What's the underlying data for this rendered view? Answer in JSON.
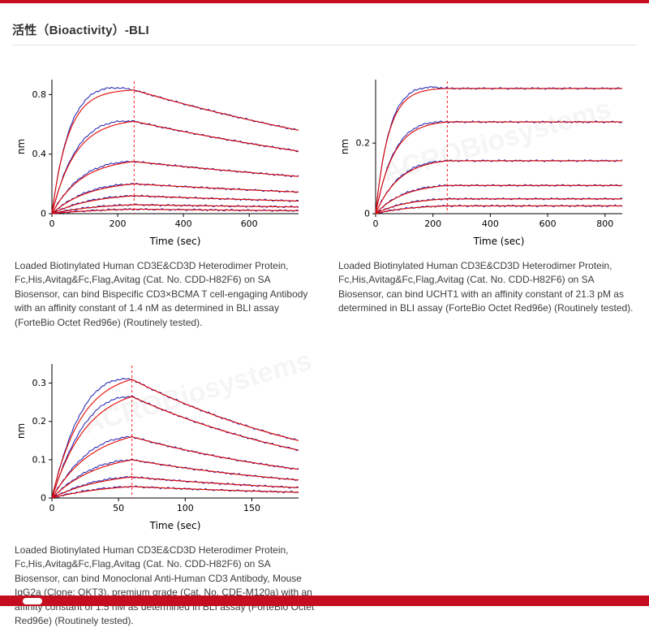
{
  "page": {
    "title": "活性（Bioactivity）-BLI",
    "watermark": "ACROBiosystems",
    "accent_color": "#c40d1e"
  },
  "chart_data": [
    {
      "type": "line",
      "title": "",
      "xlabel": "Time (sec)",
      "ylabel": "nm",
      "xlim": [
        0,
        750
      ],
      "ylim": [
        0,
        0.9
      ],
      "xticks": [
        0,
        200,
        400,
        600
      ],
      "yticks": [
        0,
        0.4,
        0.8
      ],
      "grid": false,
      "legend_position": "none",
      "association_end_sec": 250,
      "data_overshoot": 0.05,
      "colors": {
        "data": "#1d1db0",
        "fit": "#e10600",
        "dashed": "#ff1a1a"
      },
      "series": [
        {
          "name": "conc-1",
          "peak_nm": 0.83,
          "end_nm": 0.56,
          "kobs": 0.02
        },
        {
          "name": "conc-2",
          "peak_nm": 0.62,
          "end_nm": 0.42,
          "kobs": 0.014
        },
        {
          "name": "conc-3",
          "peak_nm": 0.35,
          "end_nm": 0.25,
          "kobs": 0.011
        },
        {
          "name": "conc-4",
          "peak_nm": 0.2,
          "end_nm": 0.145,
          "kobs": 0.009
        },
        {
          "name": "conc-5",
          "peak_nm": 0.12,
          "end_nm": 0.085,
          "kobs": 0.008
        },
        {
          "name": "conc-6",
          "peak_nm": 0.06,
          "end_nm": 0.045,
          "kobs": 0.007
        },
        {
          "name": "conc-7",
          "peak_nm": 0.03,
          "end_nm": 0.02,
          "kobs": 0.006
        }
      ],
      "caption": "Loaded Biotinylated Human CD3E&CD3D Heterodimer Protein, Fc,His,Avitag&Fc,Flag,Avitag (Cat. No. CDD-H82F6) on SA Biosensor, can bind Bispecific CD3×BCMA T cell-engaging Antibody with an affinity constant of 1.4 nM as determined in BLI assay (ForteBio Octet Red96e) (Routinely tested)."
    },
    {
      "type": "line",
      "title": "",
      "xlabel": "Time (sec)",
      "ylabel": "nm",
      "xlim": [
        0,
        860
      ],
      "ylim": [
        0,
        0.38
      ],
      "xticks": [
        0,
        200,
        400,
        600,
        800
      ],
      "yticks": [
        0,
        0.2
      ],
      "grid": false,
      "legend_position": "none",
      "association_end_sec": 250,
      "data_overshoot": 0.03,
      "colors": {
        "data": "#1d1db0",
        "fit": "#e10600",
        "dashed": "#ff1a1a"
      },
      "series": [
        {
          "name": "conc-1",
          "peak_nm": 0.355,
          "end_nm": 0.355,
          "kobs": 0.022
        },
        {
          "name": "conc-2",
          "peak_nm": 0.26,
          "end_nm": 0.26,
          "kobs": 0.016
        },
        {
          "name": "conc-3",
          "peak_nm": 0.15,
          "end_nm": 0.15,
          "kobs": 0.012
        },
        {
          "name": "conc-4",
          "peak_nm": 0.08,
          "end_nm": 0.08,
          "kobs": 0.01
        },
        {
          "name": "conc-5",
          "peak_nm": 0.042,
          "end_nm": 0.042,
          "kobs": 0.009
        },
        {
          "name": "conc-6",
          "peak_nm": 0.022,
          "end_nm": 0.022,
          "kobs": 0.008
        }
      ],
      "caption": "Loaded Biotinylated Human CD3E&CD3D Heterodimer Protein, Fc,His,Avitag&Fc,Flag,Avitag (Cat. No. CDD-H82F6) on SA Biosensor, can bind UCHT1 with an affinity constant of 21.3 pM as determined in BLI assay (ForteBio Octet Red96e) (Routinely tested)."
    },
    {
      "type": "line",
      "title": "",
      "xlabel": "Time (sec)",
      "ylabel": "nm",
      "xlim": [
        0,
        185
      ],
      "ylim": [
        0,
        0.35
      ],
      "xticks": [
        0,
        50,
        100,
        150
      ],
      "yticks": [
        0,
        0.1,
        0.2,
        0.3
      ],
      "grid": false,
      "legend_position": "none",
      "association_end_sec": 60,
      "data_overshoot": 0.08,
      "colors": {
        "data": "#1d1db0",
        "fit": "#e10600",
        "dashed": "#ff1a1a"
      },
      "series": [
        {
          "name": "conc-1",
          "peak_nm": 0.31,
          "end_nm": 0.15,
          "kobs": 0.045
        },
        {
          "name": "conc-2",
          "peak_nm": 0.265,
          "end_nm": 0.125,
          "kobs": 0.038
        },
        {
          "name": "conc-3",
          "peak_nm": 0.16,
          "end_nm": 0.075,
          "kobs": 0.032
        },
        {
          "name": "conc-4",
          "peak_nm": 0.1,
          "end_nm": 0.047,
          "kobs": 0.028
        },
        {
          "name": "conc-5",
          "peak_nm": 0.055,
          "end_nm": 0.027,
          "kobs": 0.025
        },
        {
          "name": "conc-6",
          "peak_nm": 0.03,
          "end_nm": 0.015,
          "kobs": 0.022
        }
      ],
      "caption": "Loaded Biotinylated Human CD3E&CD3D Heterodimer Protein, Fc,His,Avitag&Fc,Flag,Avitag (Cat. No. CDD-H82F6) on SA Biosensor, can bind Monoclonal Anti-Human CD3 Antibody, Mouse IgG2a (Clone: OKT3), premium grade (Cat. No. CDE-M120a) with an affinity constant of 1.5 nM as determined in BLI assay (ForteBio Octet Red96e) (Routinely tested)."
    }
  ]
}
